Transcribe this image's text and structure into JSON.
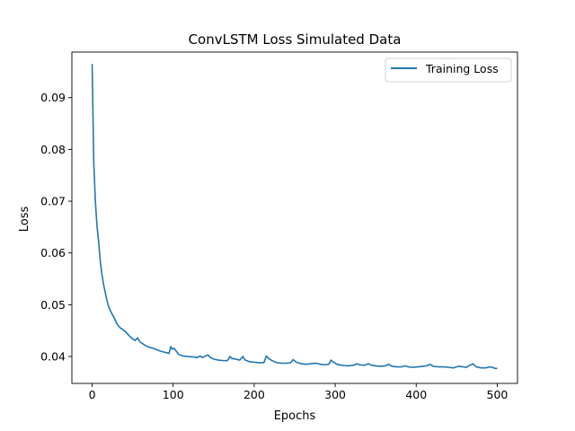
{
  "chart_data": {
    "type": "line",
    "title": "ConvLSTM Loss Simulated Data",
    "xlabel": "Epochs",
    "ylabel": "Loss",
    "xlim": [
      -25,
      525
    ],
    "ylim": [
      0.0348,
      0.0988
    ],
    "xticks": [
      0,
      100,
      200,
      300,
      400,
      500
    ],
    "yticks": [
      0.04,
      0.05,
      0.06,
      0.07,
      0.08,
      0.09
    ],
    "ytick_labels": [
      "0.04",
      "0.05",
      "0.06",
      "0.07",
      "0.08",
      "0.09"
    ],
    "grid": false,
    "legend_position": "top-right",
    "series": [
      {
        "name": "Training Loss",
        "color": "#1f77b4",
        "points": [
          [
            0,
            0.0965
          ],
          [
            2,
            0.0775
          ],
          [
            4,
            0.07
          ],
          [
            6,
            0.0652
          ],
          [
            8,
            0.0622
          ],
          [
            10,
            0.0585
          ],
          [
            12,
            0.056
          ],
          [
            14,
            0.054
          ],
          [
            16,
            0.0525
          ],
          [
            18,
            0.051
          ],
          [
            20,
            0.0498
          ],
          [
            22,
            0.049
          ],
          [
            24,
            0.0484
          ],
          [
            26,
            0.0478
          ],
          [
            28,
            0.0472
          ],
          [
            30,
            0.0465
          ],
          [
            32,
            0.046
          ],
          [
            35,
            0.0455
          ],
          [
            38,
            0.0452
          ],
          [
            41,
            0.0448
          ],
          [
            44,
            0.0443
          ],
          [
            47,
            0.0438
          ],
          [
            50,
            0.0434
          ],
          [
            53,
            0.0431
          ],
          [
            56,
            0.0436
          ],
          [
            59,
            0.0428
          ],
          [
            62,
            0.0425
          ],
          [
            66,
            0.0421
          ],
          [
            70,
            0.0418
          ],
          [
            75,
            0.0416
          ],
          [
            80,
            0.0413
          ],
          [
            85,
            0.041
          ],
          [
            90,
            0.0408
          ],
          [
            95,
            0.0406
          ],
          [
            97,
            0.0419
          ],
          [
            99,
            0.0414
          ],
          [
            101,
            0.0416
          ],
          [
            104,
            0.041
          ],
          [
            107,
            0.0404
          ],
          [
            112,
            0.0401
          ],
          [
            118,
            0.04
          ],
          [
            125,
            0.0399
          ],
          [
            130,
            0.0398
          ],
          [
            133,
            0.0401
          ],
          [
            136,
            0.0398
          ],
          [
            140,
            0.0401
          ],
          [
            143,
            0.0403
          ],
          [
            146,
            0.0398
          ],
          [
            150,
            0.0395
          ],
          [
            156,
            0.0393
          ],
          [
            162,
            0.0392
          ],
          [
            167,
            0.0392
          ],
          [
            170,
            0.04
          ],
          [
            173,
            0.0396
          ],
          [
            177,
            0.0395
          ],
          [
            182,
            0.0393
          ],
          [
            186,
            0.04
          ],
          [
            189,
            0.0393
          ],
          [
            194,
            0.039
          ],
          [
            200,
            0.0389
          ],
          [
            206,
            0.0388
          ],
          [
            212,
            0.0388
          ],
          [
            215,
            0.0401
          ],
          [
            218,
            0.0396
          ],
          [
            222,
            0.0392
          ],
          [
            228,
            0.0388
          ],
          [
            234,
            0.0387
          ],
          [
            240,
            0.0387
          ],
          [
            245,
            0.0388
          ],
          [
            248,
            0.0394
          ],
          [
            252,
            0.0389
          ],
          [
            258,
            0.0386
          ],
          [
            264,
            0.0385
          ],
          [
            270,
            0.0386
          ],
          [
            276,
            0.0387
          ],
          [
            282,
            0.0385
          ],
          [
            288,
            0.0384
          ],
          [
            292,
            0.0385
          ],
          [
            295,
            0.0393
          ],
          [
            298,
            0.0389
          ],
          [
            302,
            0.0385
          ],
          [
            308,
            0.0383
          ],
          [
            315,
            0.0382
          ],
          [
            322,
            0.0383
          ],
          [
            327,
            0.0386
          ],
          [
            330,
            0.0384
          ],
          [
            336,
            0.0383
          ],
          [
            341,
            0.0386
          ],
          [
            345,
            0.0383
          ],
          [
            350,
            0.0382
          ],
          [
            356,
            0.0381
          ],
          [
            362,
            0.0382
          ],
          [
            366,
            0.0385
          ],
          [
            370,
            0.0381
          ],
          [
            376,
            0.038
          ],
          [
            382,
            0.038
          ],
          [
            386,
            0.0382
          ],
          [
            390,
            0.038
          ],
          [
            396,
            0.0379
          ],
          [
            402,
            0.038
          ],
          [
            408,
            0.0381
          ],
          [
            413,
            0.0382
          ],
          [
            417,
            0.0385
          ],
          [
            421,
            0.0381
          ],
          [
            428,
            0.038
          ],
          [
            434,
            0.038
          ],
          [
            440,
            0.0379
          ],
          [
            446,
            0.0378
          ],
          [
            452,
            0.0381
          ],
          [
            458,
            0.038
          ],
          [
            462,
            0.0379
          ],
          [
            465,
            0.0382
          ],
          [
            470,
            0.0386
          ],
          [
            474,
            0.038
          ],
          [
            480,
            0.0378
          ],
          [
            486,
            0.0378
          ],
          [
            490,
            0.038
          ],
          [
            494,
            0.0379
          ],
          [
            497,
            0.0377
          ],
          [
            500,
            0.0377
          ]
        ]
      }
    ]
  }
}
